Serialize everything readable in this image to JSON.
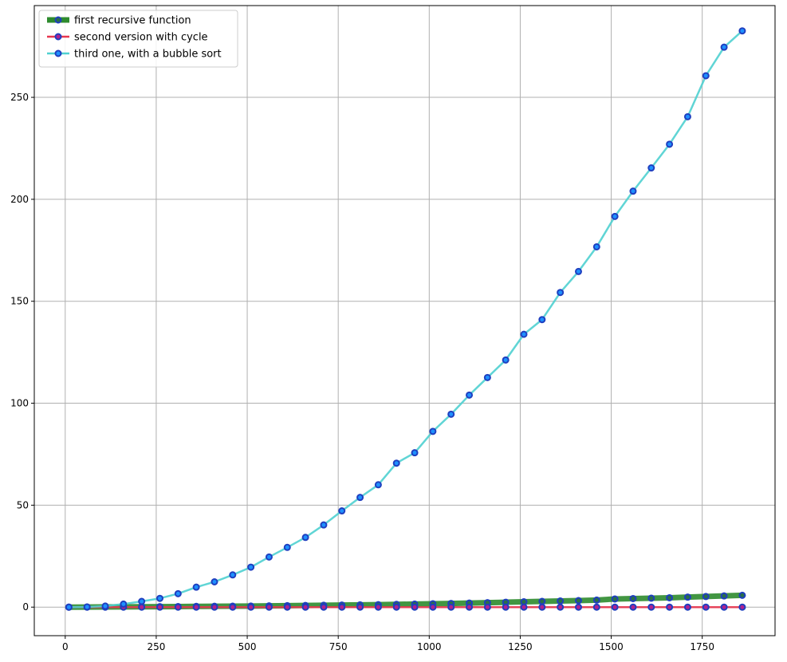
{
  "chart_data": {
    "type": "line",
    "title": "",
    "xlabel": "",
    "ylabel": "",
    "xlim": [
      -85,
      1950
    ],
    "ylim": [
      -14,
      295
    ],
    "xticks": [
      0,
      250,
      500,
      750,
      1000,
      1250,
      1500,
      1750
    ],
    "yticks": [
      0,
      50,
      100,
      150,
      200,
      250
    ],
    "grid": true,
    "legend_position": "top-left",
    "x": [
      10,
      60,
      110,
      160,
      210,
      260,
      310,
      360,
      410,
      460,
      510,
      560,
      610,
      660,
      710,
      760,
      810,
      860,
      910,
      960,
      1010,
      1060,
      1110,
      1160,
      1210,
      1260,
      1310,
      1360,
      1410,
      1460,
      1510,
      1560,
      1610,
      1660,
      1710,
      1760,
      1810,
      1860
    ],
    "series": [
      {
        "name": "first recursive function",
        "line_color": "#2e8b2e",
        "marker_edge": "#1f3fbf",
        "marker_face": "#2a6e4a",
        "values": [
          0.0,
          0.05,
          0.1,
          0.15,
          0.2,
          0.25,
          0.3,
          0.35,
          0.4,
          0.45,
          0.5,
          0.6,
          0.7,
          0.8,
          0.9,
          1.0,
          1.1,
          1.2,
          1.35,
          1.5,
          1.65,
          1.8,
          2.0,
          2.2,
          2.4,
          2.6,
          2.8,
          3.0,
          3.2,
          3.45,
          4.0,
          4.2,
          4.4,
          4.6,
          4.9,
          5.2,
          5.5,
          5.8
        ]
      },
      {
        "name": "second version with cycle",
        "line_color": "#e8364f",
        "marker_edge": "#1f3fbf",
        "marker_face": "#b0208f",
        "values": [
          0.0,
          0.0,
          0.0,
          0.0,
          0.0,
          0.0,
          0.0,
          0.0,
          0.0,
          0.0,
          0.0,
          0.0,
          0.0,
          0.0,
          0.0,
          0.0,
          0.0,
          0.0,
          0.0,
          0.0,
          0.0,
          0.0,
          0.0,
          0.0,
          0.0,
          0.0,
          0.0,
          0.0,
          0.0,
          0.0,
          0.0,
          0.0,
          0.0,
          0.0,
          0.0,
          0.0,
          0.0,
          0.0
        ]
      },
      {
        "name": "third one, with a bubble sort",
        "line_color": "#4fd0d0",
        "marker_edge": "#1f3fbf",
        "marker_face": "#1e90ff",
        "values": [
          0.0,
          0.1,
          0.5,
          1.5,
          2.8,
          4.3,
          6.6,
          9.8,
          12.4,
          15.8,
          19.6,
          24.6,
          29.3,
          34.2,
          40.3,
          47.2,
          53.8,
          60.0,
          70.6,
          75.7,
          86.2,
          94.6,
          104.0,
          112.6,
          121.2,
          133.8,
          141.0,
          154.3,
          164.6,
          176.7,
          191.6,
          204.0,
          215.4,
          227.0,
          240.5,
          260.6,
          274.6,
          282.6
        ]
      }
    ]
  }
}
